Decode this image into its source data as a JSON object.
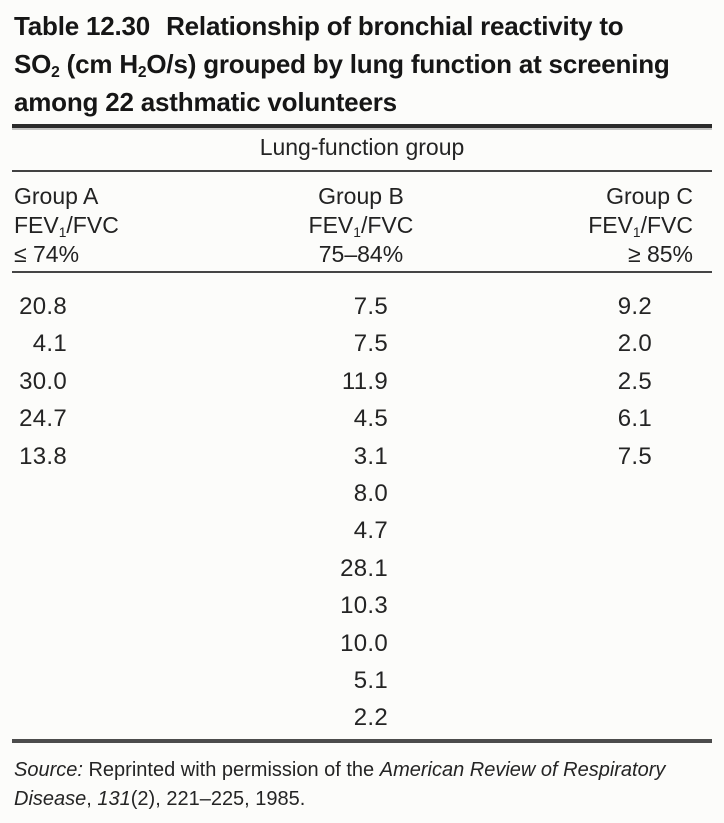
{
  "title": {
    "label": "Table 12.30",
    "line1": "Relationship of bronchial reactivity to",
    "line2": [
      "SO",
      "2",
      " (cm H",
      "2",
      "O/s) grouped by lung function at screening"
    ],
    "line3": "among 22 asthmatic volunteers"
  },
  "table": {
    "spanner": "Lung-function group",
    "columns": [
      {
        "group": "Group A",
        "fev": [
          "FEV",
          "1",
          "/FVC"
        ],
        "range": "≤ 74%"
      },
      {
        "group": "Group B",
        "fev": [
          "FEV",
          "1",
          "/FVC"
        ],
        "range": "75–84%"
      },
      {
        "group": "Group C",
        "fev": [
          "FEV",
          "1",
          "/FVC"
        ],
        "range": "≥ 85%"
      }
    ],
    "rows": [
      [
        "20.8",
        "7.5",
        "9.2"
      ],
      [
        "4.1",
        "7.5",
        "2.0"
      ],
      [
        "30.0",
        "11.9",
        "2.5"
      ],
      [
        "24.7",
        "4.5",
        "6.1"
      ],
      [
        "13.8",
        "3.1",
        "7.5"
      ],
      [
        "",
        "8.0",
        ""
      ],
      [
        "",
        "4.7",
        ""
      ],
      [
        "",
        "28.1",
        ""
      ],
      [
        "",
        "10.3",
        ""
      ],
      [
        "",
        "10.0",
        ""
      ],
      [
        "",
        "5.1",
        ""
      ],
      [
        "",
        "2.2",
        ""
      ]
    ]
  },
  "source": {
    "segments": [
      {
        "text": "Source: ",
        "italic": true
      },
      {
        "text": "Reprinted with permission of the ",
        "italic": false
      },
      {
        "text": "American Review of Respiratory Disease",
        "italic": true
      },
      {
        "text": ", ",
        "italic": false
      },
      {
        "text": "131",
        "italic": true
      },
      {
        "text": "(2), 221–225, 1985.",
        "italic": false
      }
    ]
  },
  "colors": {
    "text": "#1e1e1e",
    "rule_dark": "#2b2b2b",
    "rule_mid": "#454545",
    "background": "#fcfcfa"
  }
}
